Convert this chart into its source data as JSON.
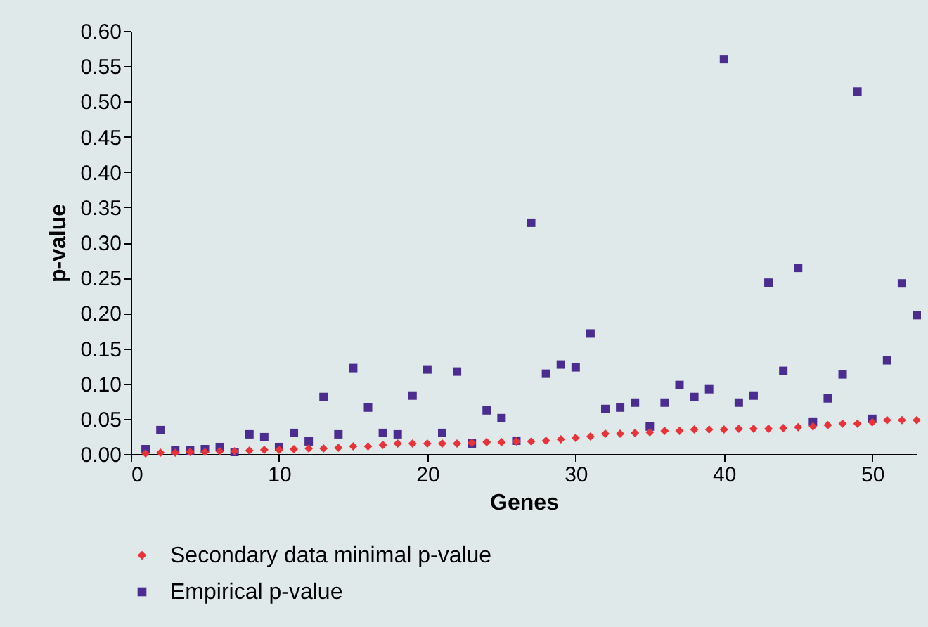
{
  "chart_data": {
    "type": "scatter",
    "xlabel": "Genes",
    "ylabel": "p-value",
    "x": [
      1,
      2,
      3,
      4,
      5,
      6,
      7,
      8,
      9,
      10,
      11,
      12,
      13,
      14,
      15,
      16,
      17,
      18,
      19,
      20,
      21,
      22,
      23,
      24,
      25,
      26,
      27,
      28,
      29,
      30,
      31,
      32,
      33,
      34,
      35,
      36,
      37,
      38,
      39,
      40,
      41,
      42,
      43,
      44,
      45,
      46,
      47,
      48,
      49,
      50,
      51,
      52,
      53
    ],
    "series": [
      {
        "name": "Secondary data minimal p-value",
        "color": "#e8333a",
        "marker": "diamond",
        "values": [
          0.001,
          0.002,
          0.002,
          0.003,
          0.003,
          0.004,
          0.004,
          0.005,
          0.006,
          0.006,
          0.007,
          0.008,
          0.008,
          0.009,
          0.011,
          0.011,
          0.013,
          0.015,
          0.015,
          0.015,
          0.015,
          0.015,
          0.016,
          0.017,
          0.017,
          0.018,
          0.018,
          0.019,
          0.021,
          0.023,
          0.025,
          0.029,
          0.029,
          0.03,
          0.031,
          0.033,
          0.033,
          0.035,
          0.035,
          0.035,
          0.036,
          0.036,
          0.036,
          0.037,
          0.038,
          0.039,
          0.041,
          0.043,
          0.043,
          0.045,
          0.048,
          0.048,
          0.048
        ]
      },
      {
        "name": "Empirical p-value",
        "color": "#4b2d8f",
        "marker": "square",
        "values": [
          0.007,
          0.034,
          0.005,
          0.005,
          0.007,
          0.01,
          0.003,
          0.028,
          0.024,
          0.01,
          0.03,
          0.018,
          0.081,
          0.028,
          0.122,
          0.066,
          0.03,
          0.028,
          0.083,
          0.12,
          0.03,
          0.117,
          0.015,
          0.062,
          0.051,
          0.019,
          0.328,
          0.114,
          0.127,
          0.123,
          0.171,
          0.064,
          0.066,
          0.073,
          0.039,
          0.073,
          0.098,
          0.081,
          0.092,
          0.56,
          0.073,
          0.083,
          0.243,
          0.118,
          0.264,
          0.046,
          0.079,
          0.113,
          0.514,
          0.05,
          0.133,
          0.242,
          0.197
        ]
      }
    ],
    "xlim": [
      0,
      53
    ],
    "xticks": [
      0,
      10,
      20,
      30,
      40,
      50
    ],
    "ylim": [
      0,
      0.6
    ],
    "yticks": [
      {
        "value": 0,
        "label": "0.00"
      },
      {
        "value": 0.05,
        "label": "0.05"
      },
      {
        "value": 0.1,
        "label": "0.10"
      },
      {
        "value": 0.15,
        "label": "0.15"
      },
      {
        "value": 0.2,
        "label": "0.20"
      },
      {
        "value": 0.25,
        "label": "0.25"
      },
      {
        "value": 0.3,
        "label": "0.30"
      },
      {
        "value": 0.35,
        "label": "0.35"
      },
      {
        "value": 0.4,
        "label": "0.40"
      },
      {
        "value": 0.45,
        "label": "0.45"
      },
      {
        "value": 0.5,
        "label": "0.50"
      },
      {
        "value": 0.55,
        "label": "0.55"
      },
      {
        "value": 0.6,
        "label": "0.60"
      }
    ],
    "legend": "bottom",
    "grid": false
  }
}
